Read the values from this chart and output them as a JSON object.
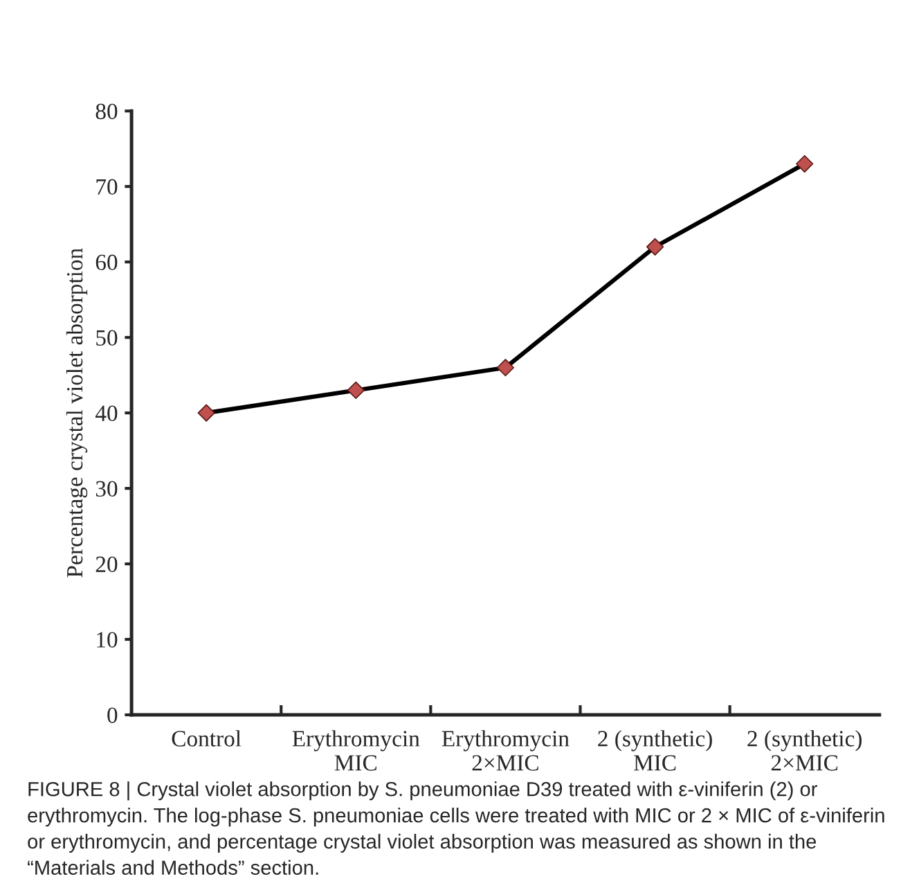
{
  "chart_data": {
    "type": "line",
    "ylabel": "Percentage crystal violet absorption",
    "categories": [
      "Control",
      "Erythromycin\nMIC",
      "Erythromycin\n2×MIC",
      "2 (synthetic)\nMIC",
      "2 (synthetic)\n2×MIC"
    ],
    "series": [
      {
        "color": "#c0504d",
        "values": [
          40,
          43,
          46,
          62,
          73
        ]
      }
    ],
    "ylim": [
      0,
      80
    ],
    "yticks": [
      0,
      10,
      20,
      30,
      40,
      50,
      60,
      70,
      80
    ],
    "marker": "diamond",
    "line_style": "solid",
    "grid": false,
    "legend": false,
    "annotations": [
      "FIGURE 8 | Crystal violet absorption by S. pneumoniae D39 treated with ε-viniferin (2) or erythromycin. The log-phase S. pneumoniae cells were treated with MIC or 2 × MIC of ε-viniferin or erythromycin, and percentage crystal violet absorption was measured as shown in the “Materials and Methods” section."
    ]
  }
}
